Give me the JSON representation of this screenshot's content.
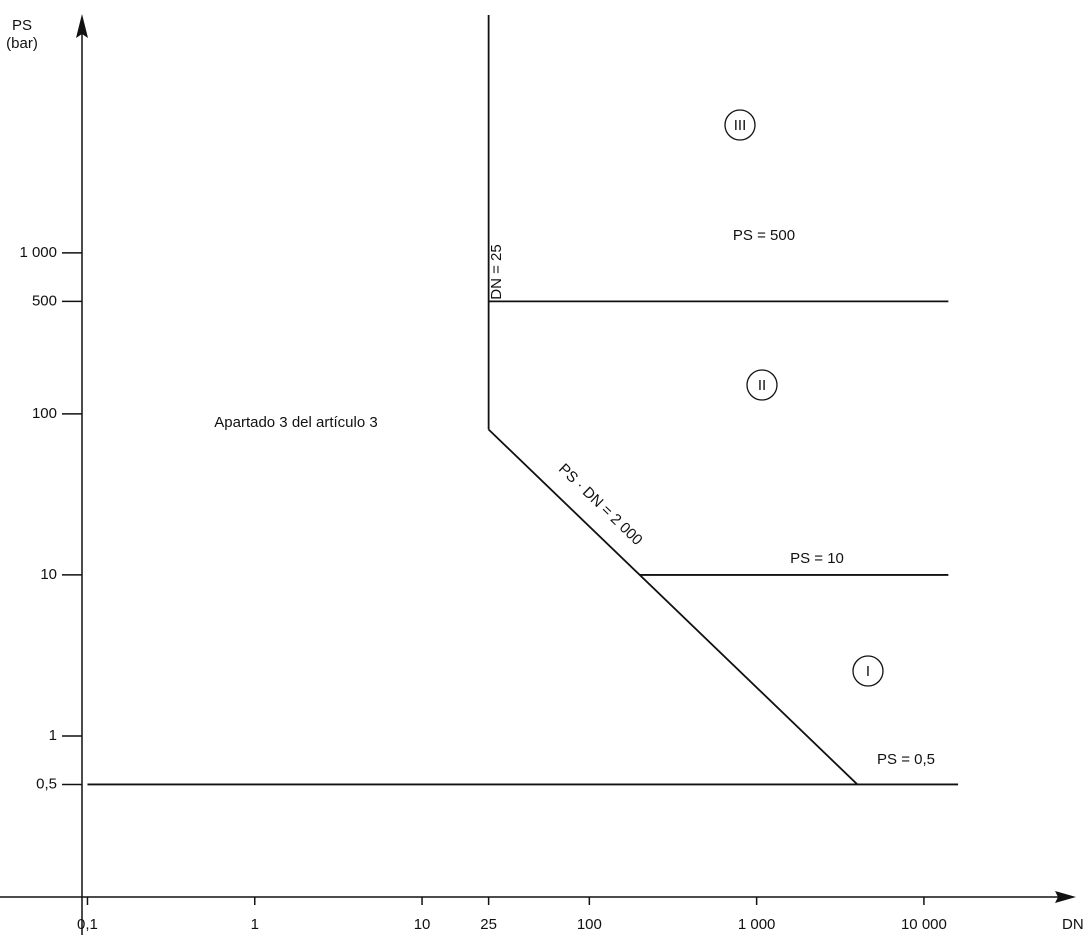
{
  "chart_data": {
    "type": "line",
    "x_label": "DN",
    "y_label": [
      "PS",
      "(bar)"
    ],
    "xscale": "log",
    "yscale": "log",
    "xlim": [
      0.03,
      80000
    ],
    "ylim": [
      0.1,
      30000
    ],
    "xticks": [
      {
        "value": 0.1,
        "label": "0,1"
      },
      1,
      10,
      25,
      100,
      {
        "value": 1000,
        "label": "1 000"
      },
      {
        "value": 10000,
        "label": "10 000"
      }
    ],
    "yticks": [
      {
        "value": 0.5,
        "label": "0,5"
      },
      1,
      10,
      100,
      500,
      {
        "value": 1000,
        "label": "1 000"
      }
    ],
    "series": [
      {
        "name": "DN = 25",
        "color": "#111111",
        "x": [
          25,
          25
        ],
        "values": [
          80,
          30000
        ]
      },
      {
        "name": "PS = 500",
        "color": "#111111",
        "x": [
          25,
          14000
        ],
        "values": [
          500,
          500
        ]
      },
      {
        "name": "PS · DN = 2 000",
        "color": "#111111",
        "x": [
          25,
          4000
        ],
        "values": [
          80,
          0.5
        ]
      },
      {
        "name": "PS = 10",
        "color": "#111111",
        "x": [
          200,
          14000
        ],
        "values": [
          10,
          10
        ]
      },
      {
        "name": "PS = 0,5",
        "color": "#111111",
        "x": [
          0.1,
          16000
        ],
        "values": [
          0.5,
          0.5
        ]
      }
    ],
    "annotations": [
      "Apartado 3 del artículo 3",
      "III",
      "II",
      "I"
    ]
  }
}
